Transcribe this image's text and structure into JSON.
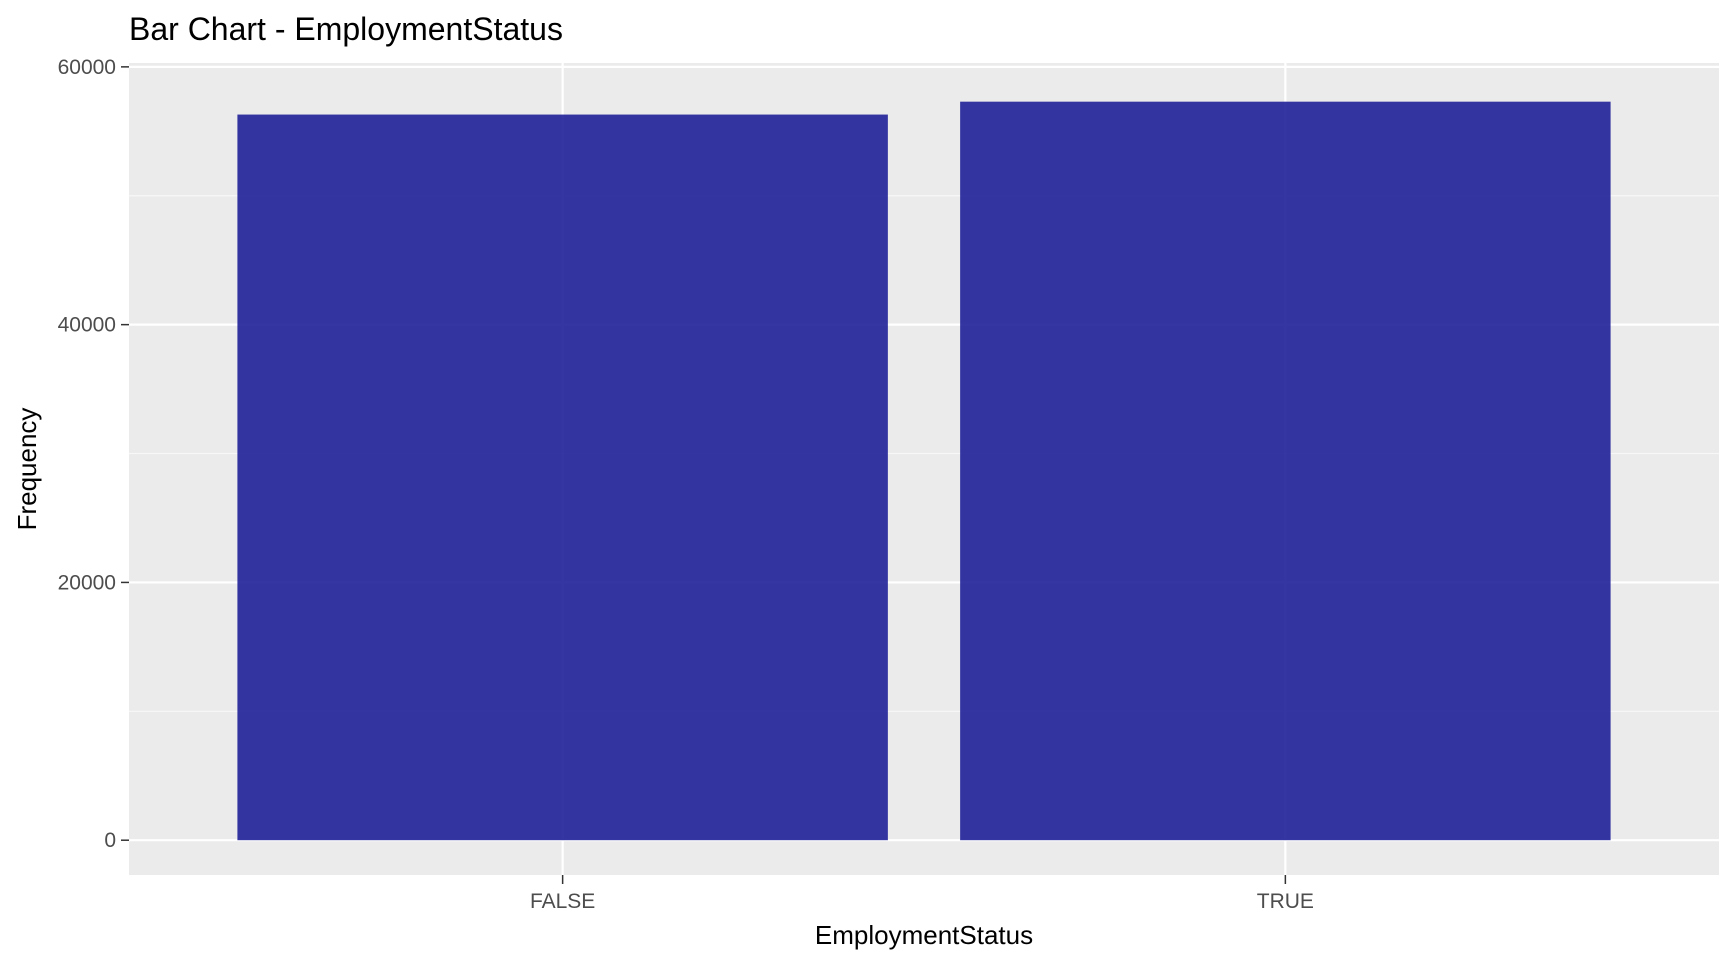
{
  "chart_data": {
    "type": "bar",
    "title": "Bar Chart - EmploymentStatus",
    "xlabel": "EmploymentStatus",
    "ylabel": "Frequency",
    "categories": [
      "FALSE",
      "TRUE"
    ],
    "values": [
      56300,
      57300
    ],
    "ylim": [
      -2700,
      60300
    ],
    "yticks": [
      0,
      20000,
      40000,
      60000
    ],
    "grid": true,
    "legend": "none",
    "colors": {
      "bar": "#1a1a96",
      "panel": "#ebebeb",
      "grid_major": "#ffffff",
      "tick_text": "#4d4d4d"
    }
  }
}
